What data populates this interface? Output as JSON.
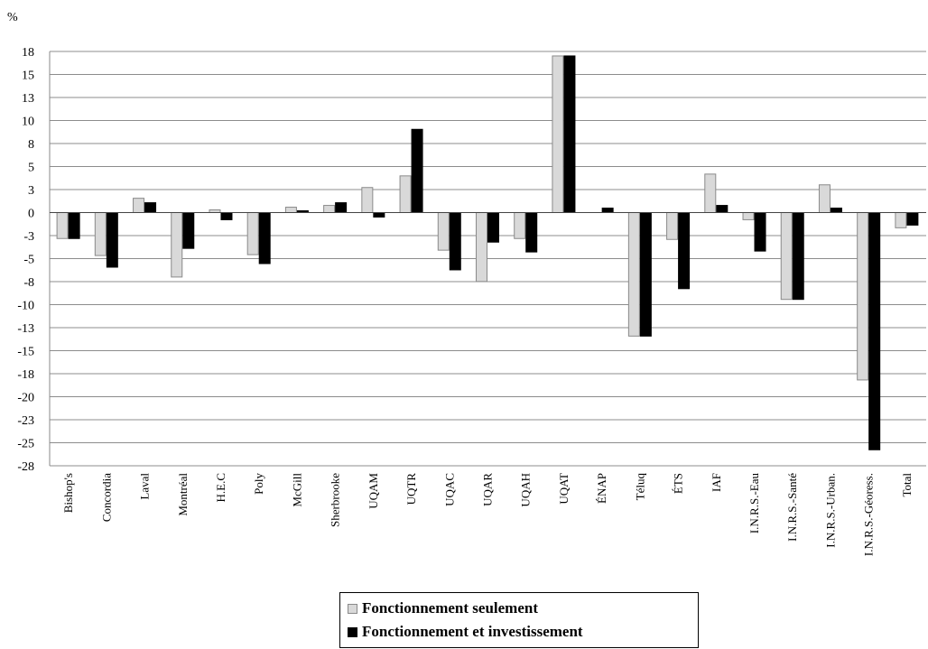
{
  "chart_data": {
    "type": "bar",
    "unit_label": "%",
    "categories": [
      "Bishop's",
      "Concordia",
      "Laval",
      "Montréal",
      "H.E.C",
      "Poly",
      "McGill",
      "Sherbrooke",
      "UQAM",
      "UQTR",
      "UQAC",
      "UQAR",
      "UQAH",
      "UQAT",
      "ÉNAP",
      "Téluq",
      "ÉTS",
      "IAF",
      "I.N.R.S.-Eau",
      "I.N.R.S.-Santé",
      "I.N.R.S.-Urban.",
      "I.N.R.S.-Géoress.",
      "Total"
    ],
    "series": [
      {
        "name": "Fonctionnement seulement",
        "color": "#d9d9d9",
        "values": [
          -2.9,
          -4.8,
          1.6,
          -7.2,
          0.3,
          -4.7,
          0.6,
          0.8,
          2.8,
          4.1,
          -4.2,
          -7.7,
          -2.9,
          17.5,
          0.0,
          -13.8,
          -3.0,
          4.3,
          -0.8,
          -9.7,
          3.1,
          -18.7,
          -1.7
        ]
      },
      {
        "name": "Fonctionnement et investissement",
        "color": "#000000",
        "values": [
          -2.9,
          -6.1,
          1.1,
          -4.0,
          -0.8,
          -5.7,
          0.2,
          1.1,
          -0.5,
          9.3,
          -6.4,
          -3.3,
          -4.4,
          17.5,
          0.5,
          -13.8,
          -8.5,
          0.8,
          -4.3,
          -9.7,
          0.5,
          -26.5,
          -1.4
        ]
      }
    ],
    "y_ticks": [
      "18",
      "15",
      "13",
      "10",
      "8",
      "5",
      "3",
      "0",
      "-3",
      "-5",
      "-8",
      "-10",
      "-13",
      "-15",
      "-18",
      "-20",
      "-23",
      "-25",
      "-28"
    ],
    "ylim": [
      -28,
      18
    ],
    "grid": true,
    "legend_position": "bottom-center"
  }
}
